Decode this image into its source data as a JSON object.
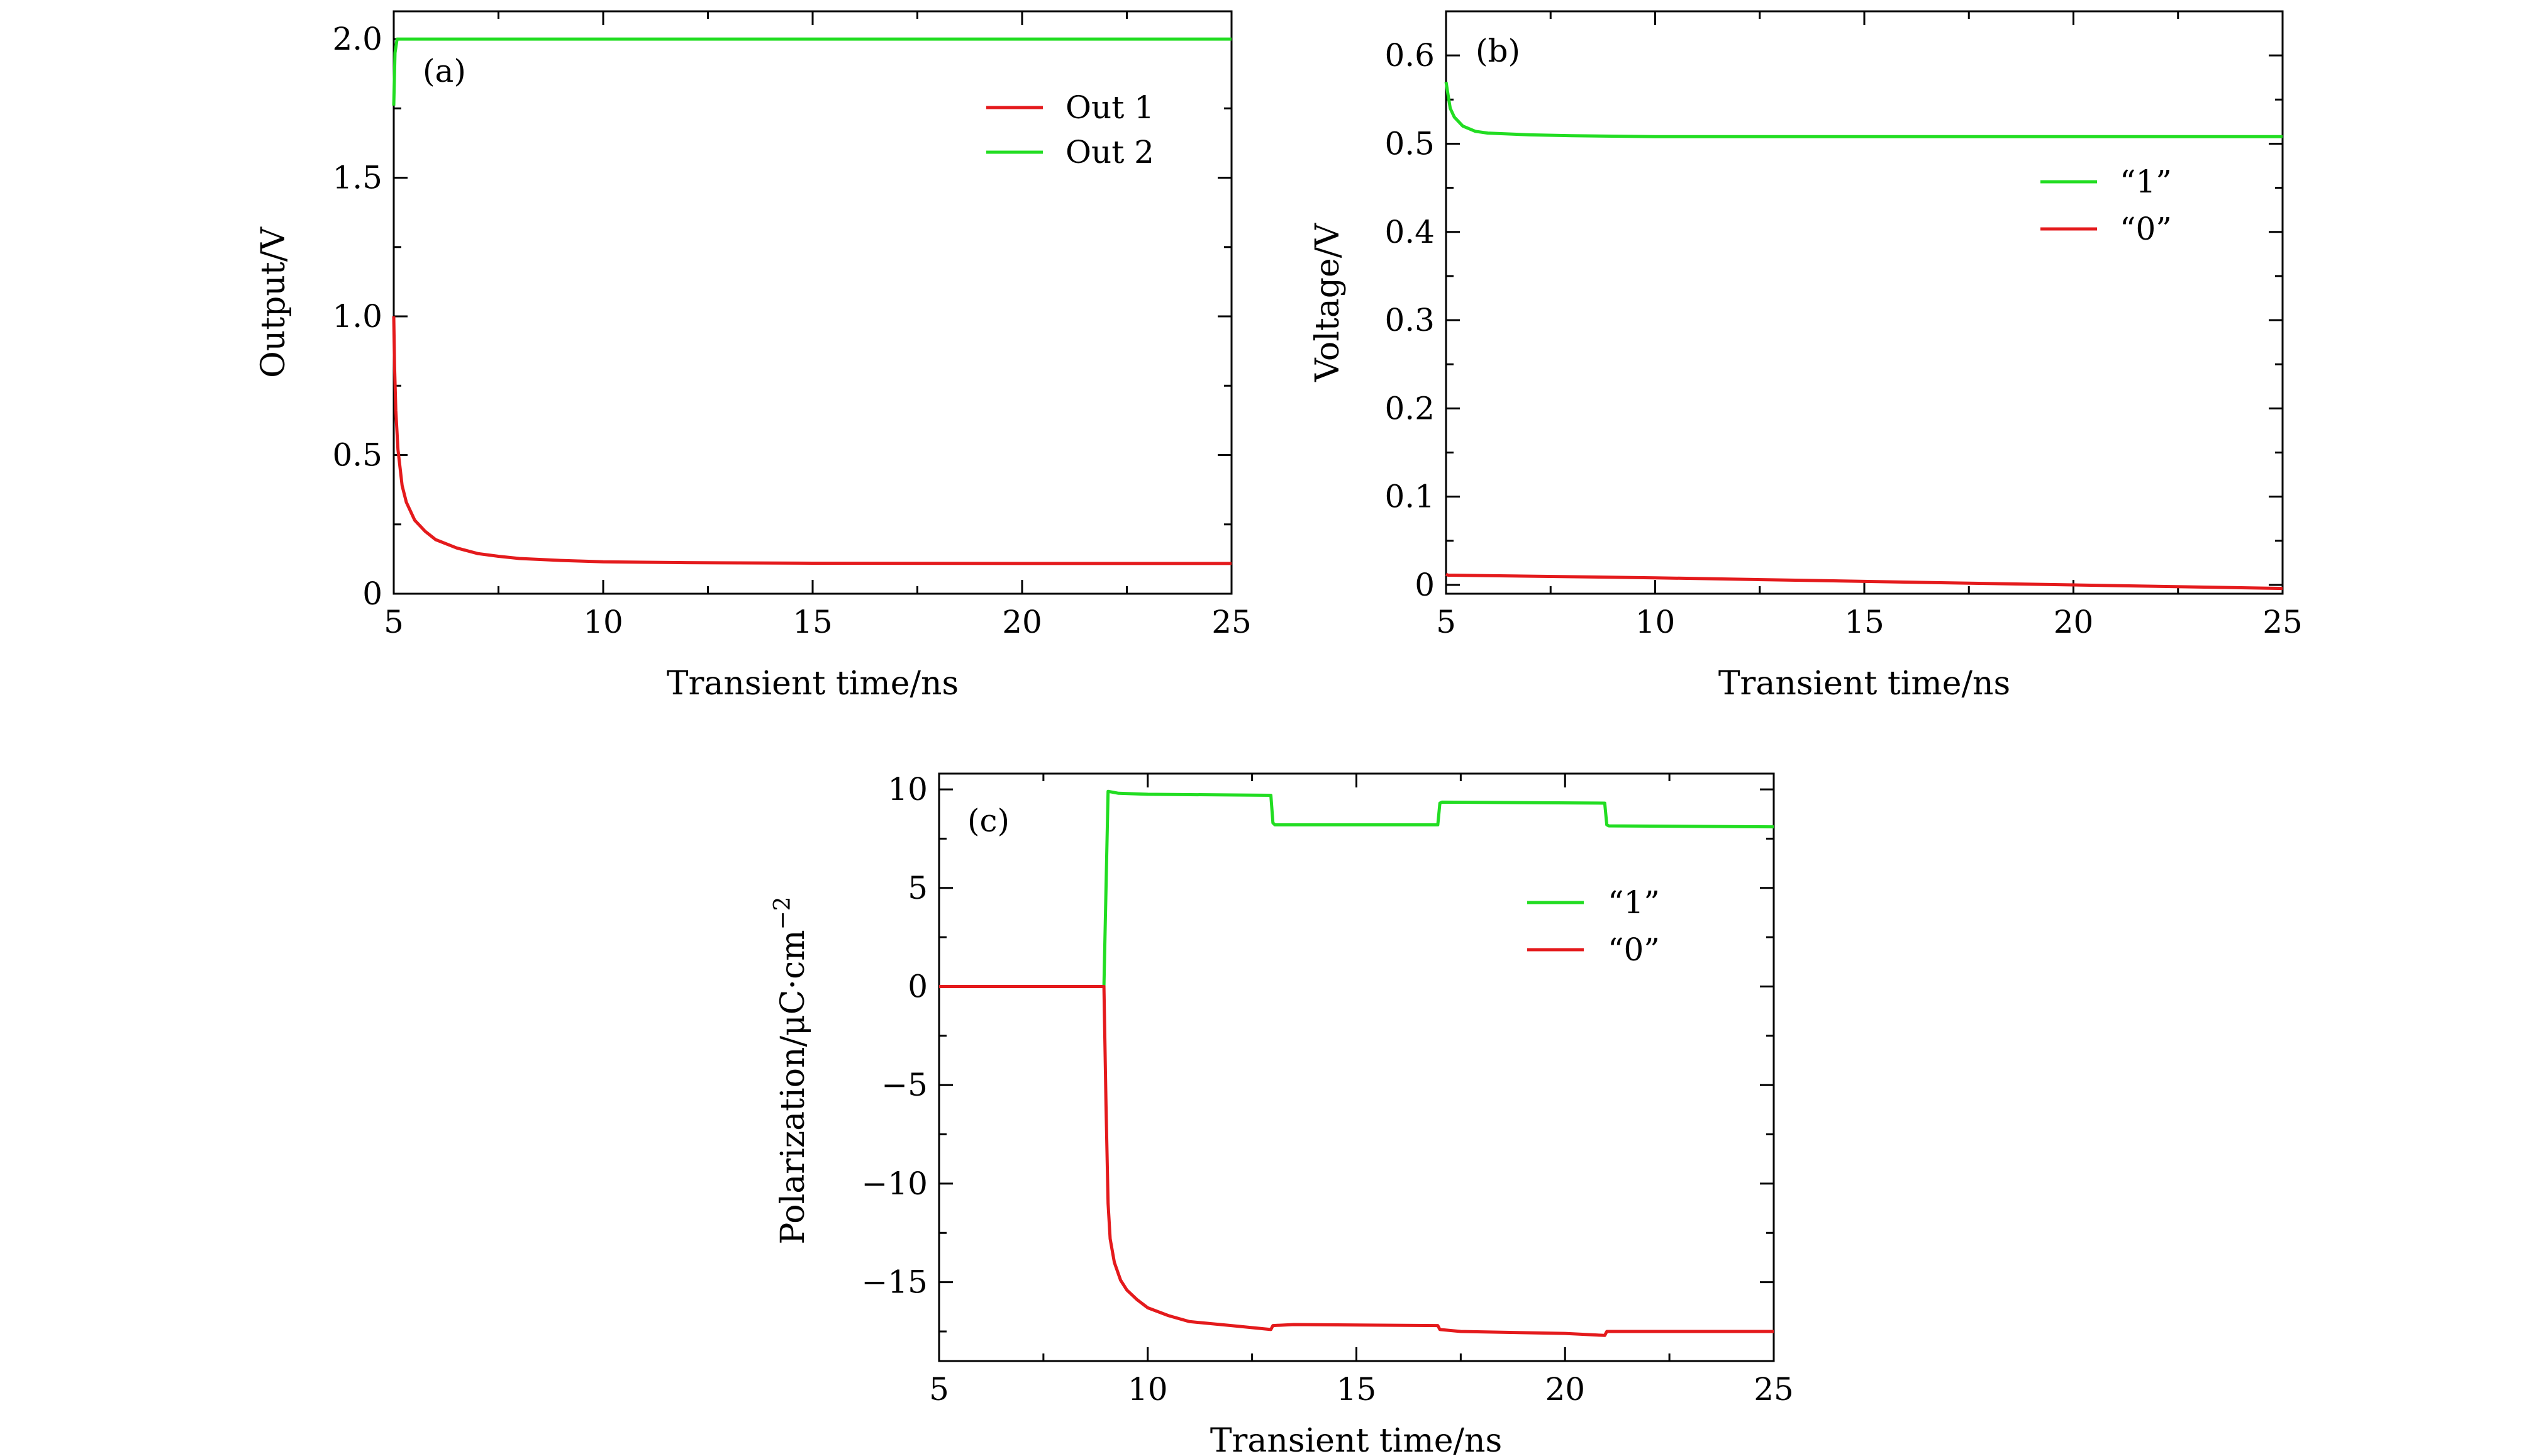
{
  "chart_data": [
    {
      "panel_label": "(a)",
      "type": "line",
      "xlabel": "Transient time/ns",
      "ylabel": "Output/V",
      "xlim": [
        5,
        25
      ],
      "ylim": [
        0,
        2.1
      ],
      "xticks": [
        5,
        10,
        15,
        20,
        25
      ],
      "xtick_labels": [
        "5",
        "10",
        "15",
        "20",
        "25"
      ],
      "yticks": [
        0,
        0.5,
        1.0,
        1.5,
        2.0
      ],
      "ytick_labels": [
        "0",
        "0.5",
        "1.0",
        "1.5",
        "2.0"
      ],
      "grid": false,
      "legend_position": "top-right",
      "series": [
        {
          "name": "Out 1",
          "color": "#e41a1c",
          "x": [
            5.0,
            5.02,
            5.05,
            5.1,
            5.2,
            5.3,
            5.5,
            5.75,
            6.0,
            6.5,
            7.0,
            7.5,
            8.0,
            9.0,
            10.0,
            12.0,
            15.0,
            20.0,
            25.0
          ],
          "y": [
            1.0,
            0.82,
            0.66,
            0.52,
            0.39,
            0.33,
            0.265,
            0.225,
            0.195,
            0.165,
            0.145,
            0.135,
            0.127,
            0.12,
            0.115,
            0.112,
            0.11,
            0.109,
            0.109
          ]
        },
        {
          "name": "Out 2",
          "color": "#22dd22",
          "x": [
            5.0,
            5.03,
            5.08,
            25.0
          ],
          "y": [
            1.76,
            1.95,
            2.0,
            2.0
          ]
        }
      ]
    },
    {
      "panel_label": "(b)",
      "type": "line",
      "xlabel": "Transient time/ns",
      "ylabel": "Voltage/V",
      "xlim": [
        5,
        25
      ],
      "ylim": [
        -0.01,
        0.65
      ],
      "xticks": [
        5,
        10,
        15,
        20,
        25
      ],
      "xtick_labels": [
        "5",
        "10",
        "15",
        "20",
        "25"
      ],
      "yticks": [
        0,
        0.1,
        0.2,
        0.3,
        0.4,
        0.5,
        0.6
      ],
      "ytick_labels": [
        "0",
        "0.1",
        "0.2",
        "0.3",
        "0.4",
        "0.5",
        "0.6"
      ],
      "grid": false,
      "legend_position": "right",
      "series": [
        {
          "name": "“1”",
          "color": "#22dd22",
          "x": [
            5.0,
            5.05,
            5.1,
            5.2,
            5.4,
            5.7,
            6.0,
            7.0,
            8.0,
            10.0,
            15.0,
            20.0,
            25.0
          ],
          "y": [
            0.57,
            0.555,
            0.54,
            0.53,
            0.52,
            0.514,
            0.512,
            0.51,
            0.509,
            0.508,
            0.508,
            0.508,
            0.508
          ]
        },
        {
          "name": "“0”",
          "color": "#e41a1c",
          "x": [
            5.0,
            5.05,
            10.0,
            15.0,
            20.0,
            25.0
          ],
          "y": [
            0.012,
            0.011,
            0.008,
            0.004,
            0.0,
            -0.004
          ]
        }
      ]
    },
    {
      "panel_label": "(c)",
      "type": "line",
      "xlabel": "Transient time/ns",
      "ylabel": "Polarization/μC·cm⁻²",
      "ylabel_parts": {
        "base": "Polarization/μC·cm",
        "superscript": "−2"
      },
      "xlim": [
        5,
        25
      ],
      "ylim": [
        -19,
        10.8
      ],
      "xticks": [
        5,
        10,
        15,
        20,
        25
      ],
      "xtick_labels": [
        "5",
        "10",
        "15",
        "20",
        "25"
      ],
      "yticks": [
        10,
        5,
        0,
        -5,
        -10,
        -15
      ],
      "ytick_labels": [
        "10",
        "5",
        "0",
        "−5",
        "−10",
        "−15"
      ],
      "grid": false,
      "legend_position": "top-right",
      "series": [
        {
          "name": "“1”",
          "color": "#22dd22",
          "x": [
            5.0,
            8.95,
            9.05,
            9.3,
            10.0,
            12.95,
            13.0,
            13.05,
            16.95,
            17.0,
            17.05,
            20.95,
            21.0,
            21.05,
            25.0
          ],
          "y": [
            0,
            0,
            9.9,
            9.8,
            9.75,
            9.7,
            8.3,
            8.2,
            8.2,
            9.3,
            9.35,
            9.3,
            8.2,
            8.15,
            8.1
          ]
        },
        {
          "name": "“0”",
          "color": "#e41a1c",
          "x": [
            5.0,
            8.95,
            9.0,
            9.05,
            9.1,
            9.2,
            9.35,
            9.5,
            9.75,
            10.0,
            10.5,
            11.0,
            12.0,
            12.95,
            13.0,
            13.5,
            16.95,
            17.0,
            17.5,
            20.0,
            20.95,
            21.0,
            21.5,
            25.0
          ],
          "y": [
            0,
            0,
            -6.0,
            -11.0,
            -12.8,
            -14.0,
            -14.9,
            -15.4,
            -15.9,
            -16.3,
            -16.7,
            -17.0,
            -17.2,
            -17.4,
            -17.2,
            -17.15,
            -17.2,
            -17.4,
            -17.5,
            -17.6,
            -17.7,
            -17.5,
            -17.5,
            -17.5
          ]
        }
      ]
    }
  ]
}
